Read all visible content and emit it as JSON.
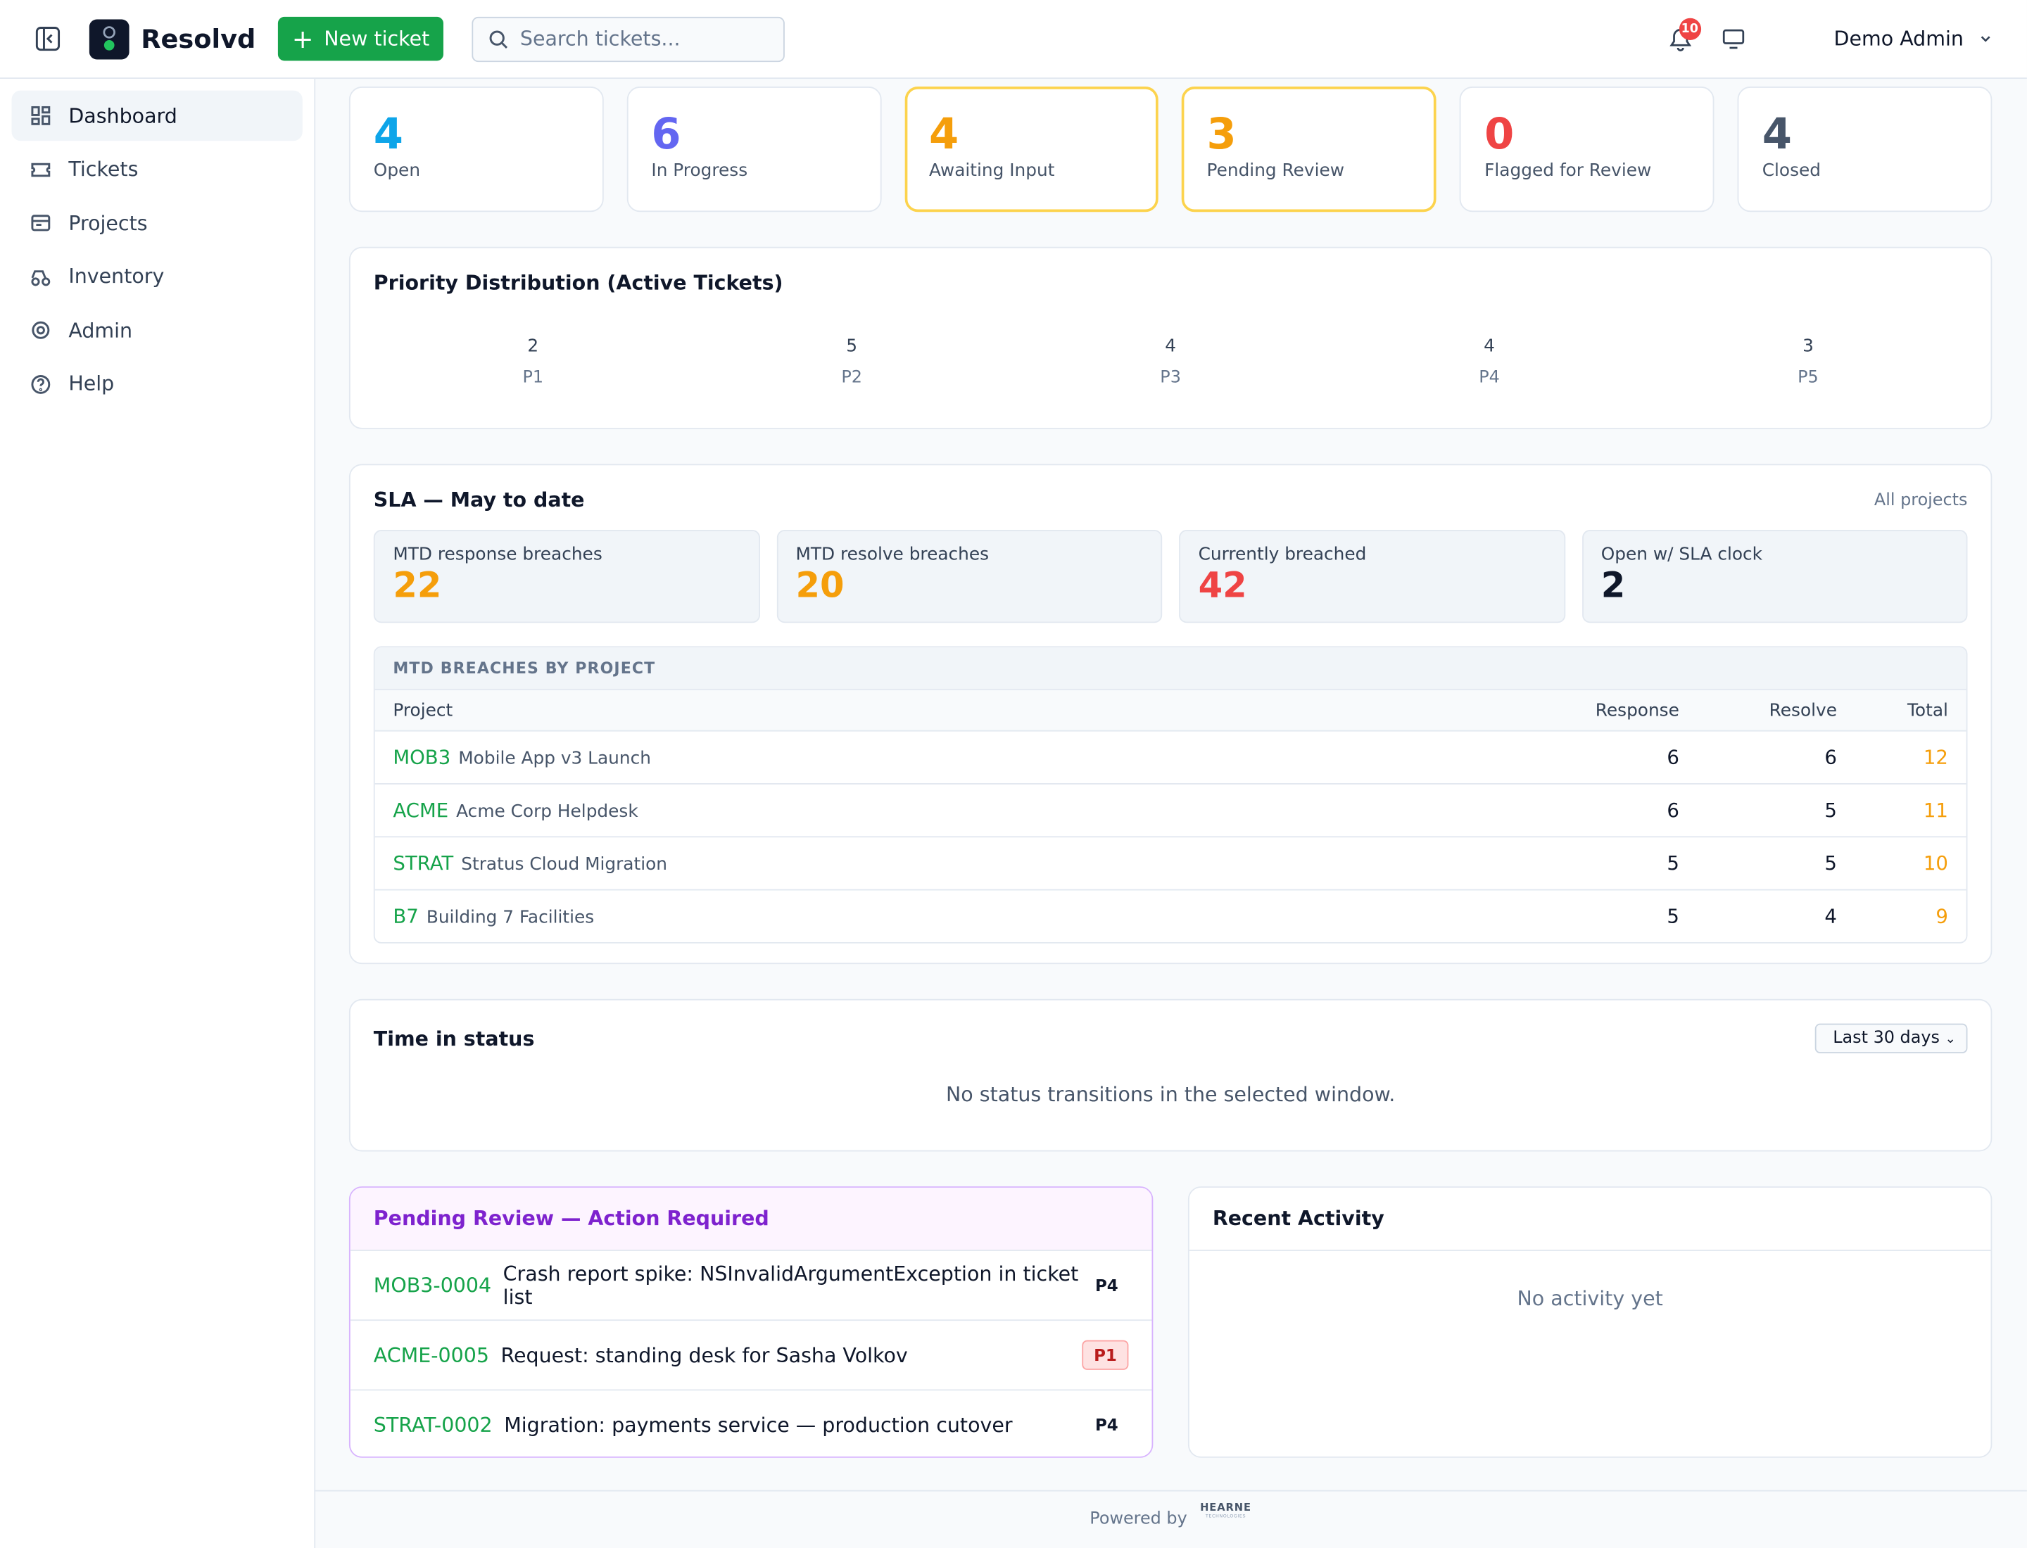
{
  "header": {
    "brand": "Resolvd",
    "new_ticket": "New ticket",
    "search_placeholder": "Search tickets...",
    "notifications": 10,
    "user": "Demo Admin"
  },
  "sidebar": [
    "Dashboard",
    "Tickets",
    "Projects",
    "Inventory",
    "Admin",
    "Help"
  ],
  "status_cards": [
    {
      "count": 4,
      "label": "Open",
      "color": "#0ea5e9"
    },
    {
      "count": 6,
      "label": "In Progress",
      "color": "#6366f1"
    },
    {
      "count": 4,
      "label": "Awaiting Input",
      "color": "#f59e0b"
    },
    {
      "count": 3,
      "label": "Pending Review",
      "color": "#f59e0b"
    },
    {
      "count": 0,
      "label": "Flagged for Review",
      "color": "#ef4444"
    },
    {
      "count": 4,
      "label": "Closed",
      "color": "#475569"
    }
  ],
  "priority": {
    "title": "Priority Distribution (Active Tickets)",
    "items": [
      {
        "count": 2,
        "label": "P1"
      },
      {
        "count": 5,
        "label": "P2"
      },
      {
        "count": 4,
        "label": "P3"
      },
      {
        "count": 4,
        "label": "P4"
      },
      {
        "count": 3,
        "label": "P5"
      }
    ]
  },
  "sla": {
    "title": "SLA — May to date",
    "scope": "All projects",
    "metrics": [
      {
        "label": "MTD response breaches",
        "value": 22,
        "color": "#f59e0b"
      },
      {
        "label": "MTD resolve breaches",
        "value": 20,
        "color": "#f59e0b"
      },
      {
        "label": "Currently breached",
        "value": 42,
        "color": "#ef4444"
      },
      {
        "label": "Open w/ SLA clock",
        "value": 2,
        "color": "#0f172a"
      }
    ],
    "table": {
      "title": "MTD BREACHES BY PROJECT",
      "columns": [
        "Project",
        "Response",
        "Resolve",
        "Total"
      ],
      "rows": [
        {
          "key": "MOB3",
          "name": "Mobile App v3 Launch",
          "response": 6,
          "resolve": 6,
          "total": 12
        },
        {
          "key": "ACME",
          "name": "Acme Corp Helpdesk",
          "response": 6,
          "resolve": 5,
          "total": 11
        },
        {
          "key": "STRAT",
          "name": "Stratus Cloud Migration",
          "response": 5,
          "resolve": 5,
          "total": 10
        },
        {
          "key": "B7",
          "name": "Building 7 Facilities",
          "response": 5,
          "resolve": 4,
          "total": 9
        }
      ]
    }
  },
  "time_in_status": {
    "title": "Time in status",
    "range": "Last 30 days",
    "empty": "No status transitions in the selected window."
  },
  "pending": {
    "title": "Pending Review — Action Required",
    "items": [
      {
        "key": "MOB3-0004",
        "summary": "Crash report spike: NSInvalidArgumentException in ticket list",
        "priority": "P4"
      },
      {
        "key": "ACME-0005",
        "summary": "Request: standing desk for Sasha Volkov",
        "priority": "P1"
      },
      {
        "key": "STRAT-0002",
        "summary": "Migration: payments service — production cutover",
        "priority": "P4"
      }
    ]
  },
  "activity": {
    "title": "Recent Activity",
    "empty": "No activity yet"
  },
  "footer": {
    "powered": "Powered by",
    "logo": "HEARNE",
    "logo_sub": "TECHNOLOGIES"
  }
}
